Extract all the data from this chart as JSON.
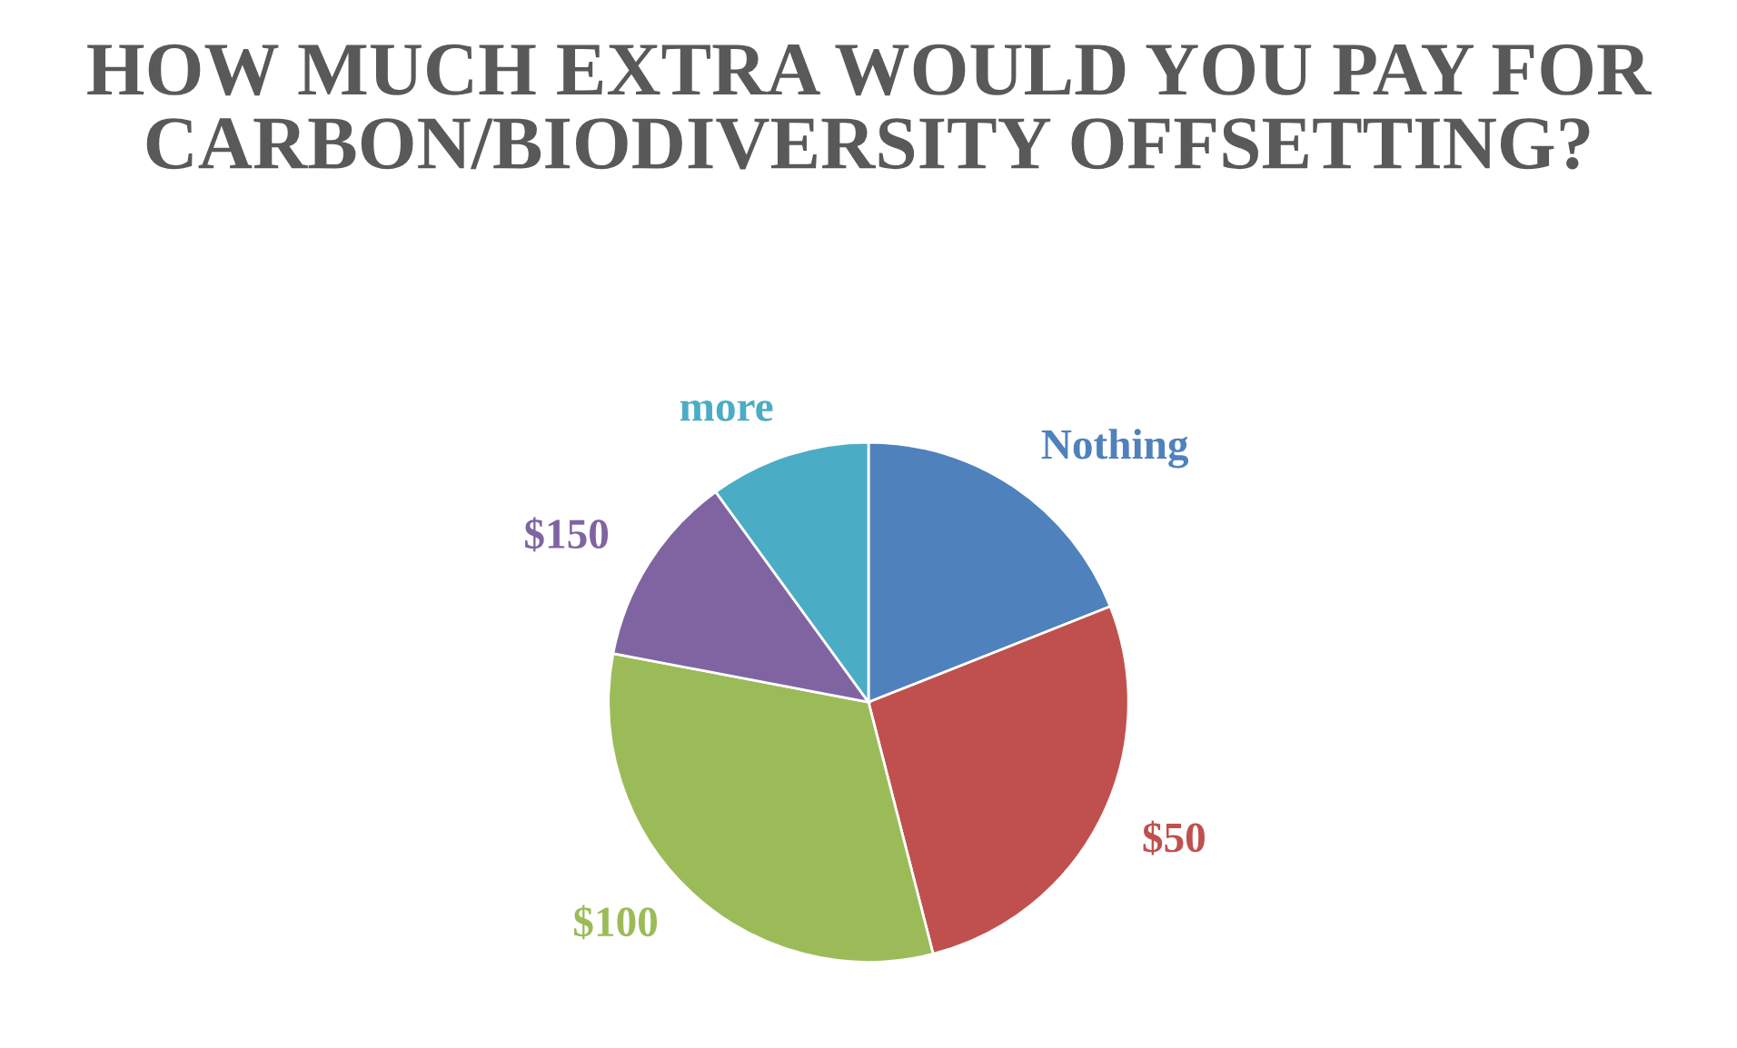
{
  "chart_data": {
    "type": "pie",
    "title": "HOW MUCH EXTRA WOULD YOU PAY FOR CARBON/BIODIVERSITY OFFSETTING?",
    "categories": [
      "Nothing",
      "$50",
      "$100",
      "$150",
      "more"
    ],
    "values": [
      19,
      27,
      32,
      12,
      10
    ],
    "colors": [
      "#4f81bd",
      "#c0504d",
      "#9bbb59",
      "#8064a2",
      "#4bacc6"
    ],
    "legend": false
  }
}
